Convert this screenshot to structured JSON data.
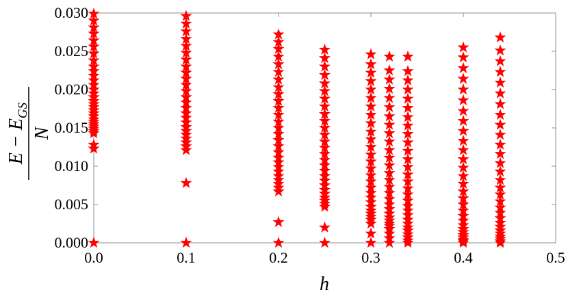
{
  "chart_data": {
    "type": "scatter",
    "xlabel": "h",
    "ylabel": {
      "numerator_main": "E − E",
      "numerator_sub": "GS",
      "denominator": "N"
    },
    "xlim": [
      0.0,
      0.5
    ],
    "ylim": [
      0.0,
      0.03
    ],
    "xticks": [
      "0.0",
      "0.1",
      "0.2",
      "0.3",
      "0.4",
      "0.5"
    ],
    "yticks": [
      "0.000",
      "0.005",
      "0.010",
      "0.015",
      "0.020",
      "0.025",
      "0.030"
    ],
    "xtick_values": [
      0.0,
      0.1,
      0.2,
      0.3,
      0.4,
      0.5
    ],
    "ytick_values": [
      0.0,
      0.005,
      0.01,
      0.015,
      0.02,
      0.025,
      0.03
    ],
    "marker": "star",
    "color": "#ff0000",
    "grid": false,
    "series": [
      {
        "points": [
          {
            "x": 0.0,
            "y": [
              0.0,
              0.0123,
              0.0128,
              0.0143,
              0.0146,
              0.0149,
              0.0152,
              0.0155,
              0.0158,
              0.0161,
              0.0165,
              0.0169,
              0.0173,
              0.0177,
              0.0181,
              0.0185,
              0.019,
              0.0195,
              0.02,
              0.0206,
              0.0212,
              0.0218,
              0.0224,
              0.023,
              0.0238,
              0.0247,
              0.0256,
              0.0264,
              0.0273,
              0.0281,
              0.029,
              0.0299
            ]
          },
          {
            "x": 0.1,
            "y": [
              0.0,
              0.0078,
              0.0121,
              0.0126,
              0.0131,
              0.0136,
              0.0141,
              0.0146,
              0.0151,
              0.0157,
              0.0163,
              0.0169,
              0.0176,
              0.0183,
              0.019,
              0.0198,
              0.0206,
              0.0214,
              0.0222,
              0.023,
              0.0239,
              0.0248,
              0.0257,
              0.0266,
              0.0276,
              0.0286,
              0.0296
            ]
          },
          {
            "x": 0.2,
            "y": [
              0.0,
              0.0027,
              0.0067,
              0.0072,
              0.0077,
              0.0082,
              0.0087,
              0.0093,
              0.0099,
              0.0105,
              0.0111,
              0.0118,
              0.0126,
              0.0134,
              0.0142,
              0.015,
              0.0158,
              0.0167,
              0.0176,
              0.0185,
              0.0194,
              0.0203,
              0.0213,
              0.0223,
              0.0233,
              0.0243,
              0.0253,
              0.0262,
              0.0272
            ]
          },
          {
            "x": 0.25,
            "y": [
              0.0,
              0.002,
              0.0047,
              0.0051,
              0.0055,
              0.0059,
              0.0064,
              0.0069,
              0.0075,
              0.0081,
              0.0087,
              0.0094,
              0.0101,
              0.0108,
              0.0116,
              0.0124,
              0.0132,
              0.0141,
              0.015,
              0.0159,
              0.0168,
              0.0178,
              0.0188,
              0.0198,
              0.0208,
              0.0219,
              0.023,
              0.0241,
              0.0252
            ]
          },
          {
            "x": 0.3,
            "y": [
              0.0,
              0.0012,
              0.0025,
              0.003,
              0.0034,
              0.0038,
              0.0042,
              0.0047,
              0.0053,
              0.0059,
              0.0065,
              0.0072,
              0.008,
              0.0088,
              0.0097,
              0.0106,
              0.0115,
              0.0125,
              0.0135,
              0.0145,
              0.0156,
              0.0167,
              0.0178,
              0.0189,
              0.02,
              0.0211,
              0.0222,
              0.0233,
              0.0246
            ]
          },
          {
            "x": 0.32,
            "y": [
              0.0,
              0.0006,
              0.0012,
              0.0018,
              0.0022,
              0.0025,
              0.0029,
              0.0033,
              0.0038,
              0.0044,
              0.005,
              0.0057,
              0.0065,
              0.0073,
              0.0082,
              0.0091,
              0.0101,
              0.0111,
              0.0121,
              0.0132,
              0.0143,
              0.0154,
              0.0165,
              0.0177,
              0.0189,
              0.0201,
              0.0213,
              0.0225,
              0.0243
            ]
          },
          {
            "x": 0.34,
            "y": [
              0.0,
              0.0003,
              0.0007,
              0.0011,
              0.0016,
              0.002,
              0.0025,
              0.003,
              0.0036,
              0.0042,
              0.0048,
              0.0055,
              0.0063,
              0.0071,
              0.008,
              0.0089,
              0.0099,
              0.0109,
              0.012,
              0.0131,
              0.0142,
              0.0153,
              0.0164,
              0.0176,
              0.0188,
              0.02,
              0.0212,
              0.0224,
              0.0243
            ]
          },
          {
            "x": 0.4,
            "y": [
              0.0,
              0.0002,
              0.0004,
              0.0007,
              0.001,
              0.0014,
              0.0018,
              0.0023,
              0.0029,
              0.0035,
              0.0042,
              0.005,
              0.0058,
              0.0067,
              0.0077,
              0.0087,
              0.0098,
              0.0109,
              0.0121,
              0.0133,
              0.0146,
              0.0159,
              0.0172,
              0.0186,
              0.02,
              0.0214,
              0.0228,
              0.0242,
              0.0255
            ]
          },
          {
            "x": 0.44,
            "y": [
              0.0,
              0.0002,
              0.0005,
              0.0008,
              0.0012,
              0.0016,
              0.0021,
              0.0026,
              0.0032,
              0.0039,
              0.0046,
              0.0054,
              0.0063,
              0.0072,
              0.0082,
              0.0093,
              0.0104,
              0.0116,
              0.0128,
              0.0141,
              0.0154,
              0.0167,
              0.0181,
              0.0195,
              0.0209,
              0.0223,
              0.0237,
              0.0251,
              0.0268
            ]
          }
        ]
      }
    ]
  }
}
